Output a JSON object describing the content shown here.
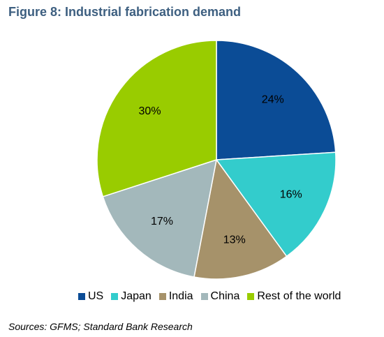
{
  "figure": {
    "title": "Figure 8: Industrial fabrication demand",
    "source": "Sources: GFMS; Standard Bank Research"
  },
  "chart_data": {
    "type": "pie",
    "title": "Figure 8: Industrial fabrication demand",
    "legend_position": "bottom",
    "slices": [
      {
        "label": "US",
        "value": 24,
        "display": "24%",
        "color": "#0b4c96"
      },
      {
        "label": "Japan",
        "value": 16,
        "display": "16%",
        "color": "#33cccc"
      },
      {
        "label": "India",
        "value": 13,
        "display": "13%",
        "color": "#a6926a"
      },
      {
        "label": "China",
        "value": 17,
        "display": "17%",
        "color": "#a3b8bb"
      },
      {
        "label": "Rest of the world",
        "value": 30,
        "display": "30%",
        "color": "#99cc00"
      }
    ]
  }
}
